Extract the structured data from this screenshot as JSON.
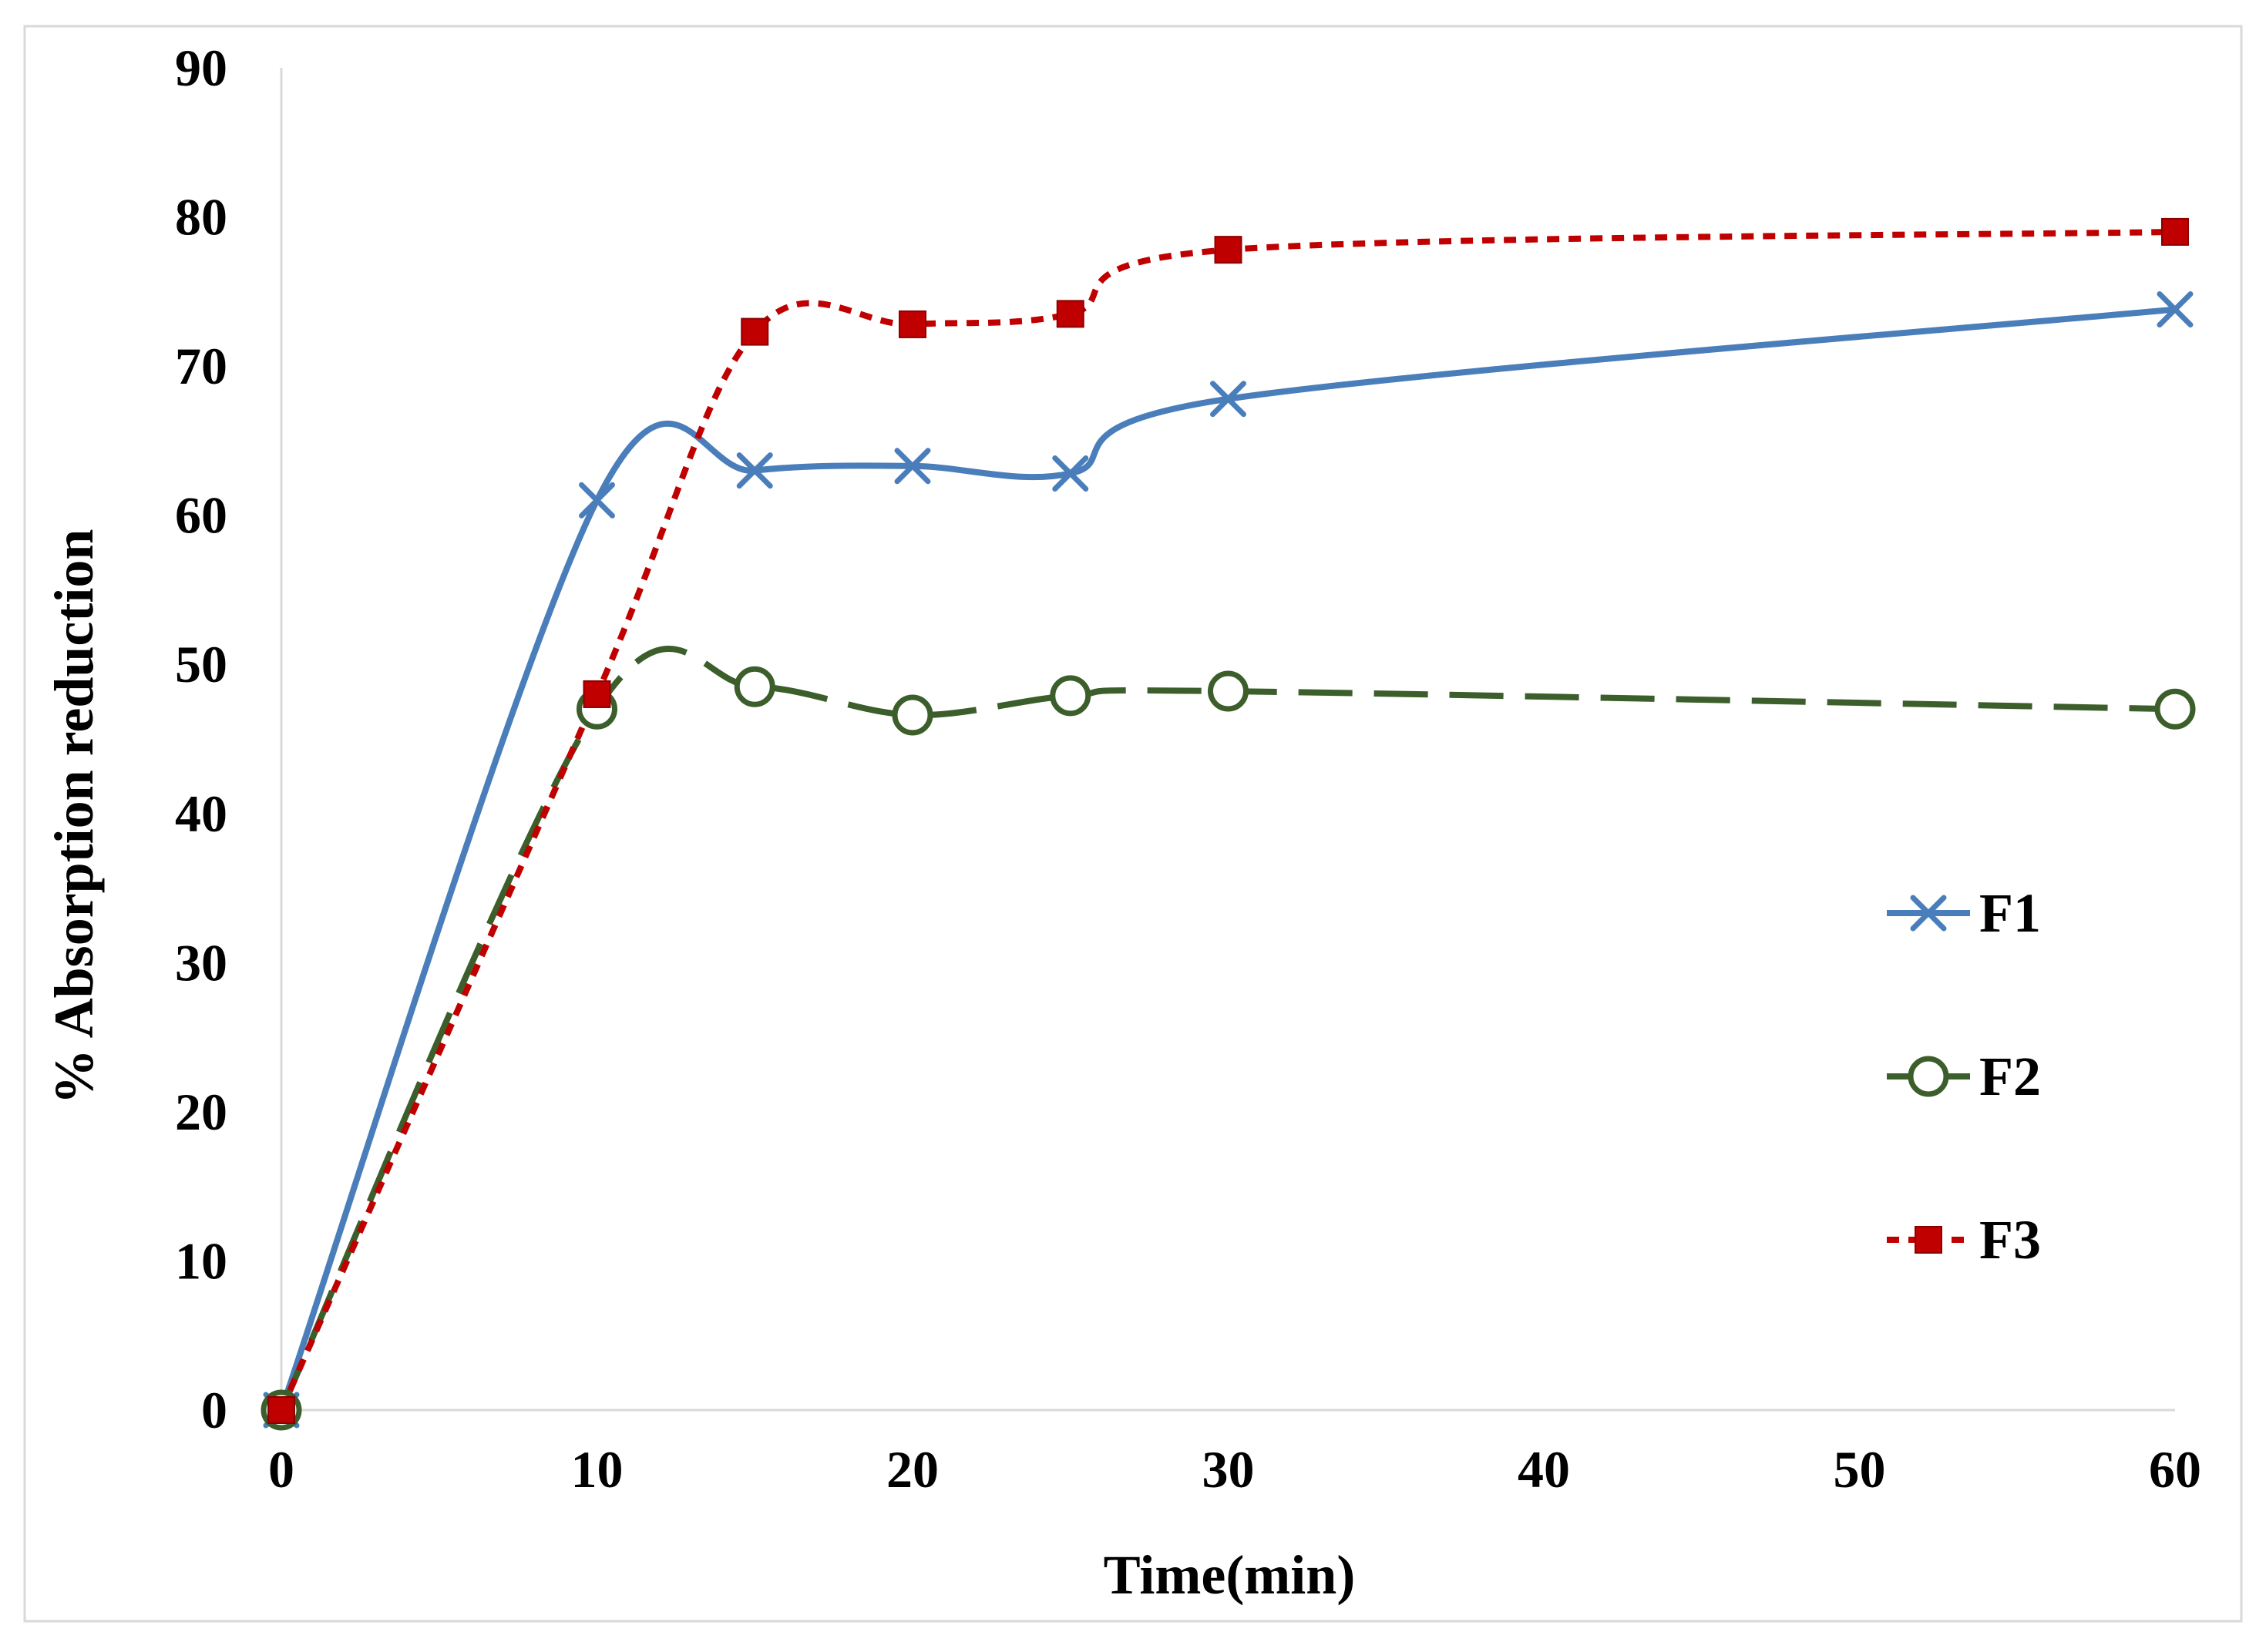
{
  "chart_data": {
    "type": "line",
    "title": "",
    "xlabel": "Time(min)",
    "ylabel": "% Absorption reduction",
    "xlim": [
      0,
      60
    ],
    "ylim": [
      0,
      90
    ],
    "xticks": [
      0,
      10,
      20,
      30,
      40,
      50,
      60
    ],
    "yticks": [
      0,
      10,
      20,
      30,
      40,
      50,
      60,
      70,
      80,
      90
    ],
    "grid": false,
    "legend_position": "right-middle",
    "x": [
      0,
      10,
      15,
      20,
      25,
      30,
      60
    ],
    "series": [
      {
        "name": "F1",
        "values": [
          0,
          61,
          63,
          63.3,
          62.8,
          67.8,
          73.8
        ],
        "color": "#4a7ebb",
        "marker": "x",
        "line_style": "solid"
      },
      {
        "name": "F2",
        "values": [
          0,
          47,
          48.5,
          46.6,
          47.9,
          48.2,
          47
        ],
        "color": "#3b5e2b",
        "marker": "open-circle",
        "line_style": "long-dash"
      },
      {
        "name": "F3",
        "values": [
          0,
          48,
          72.3,
          72.8,
          73.5,
          77.8,
          79
        ],
        "color": "#c00000",
        "marker": "square",
        "line_style": "dotted"
      }
    ]
  }
}
